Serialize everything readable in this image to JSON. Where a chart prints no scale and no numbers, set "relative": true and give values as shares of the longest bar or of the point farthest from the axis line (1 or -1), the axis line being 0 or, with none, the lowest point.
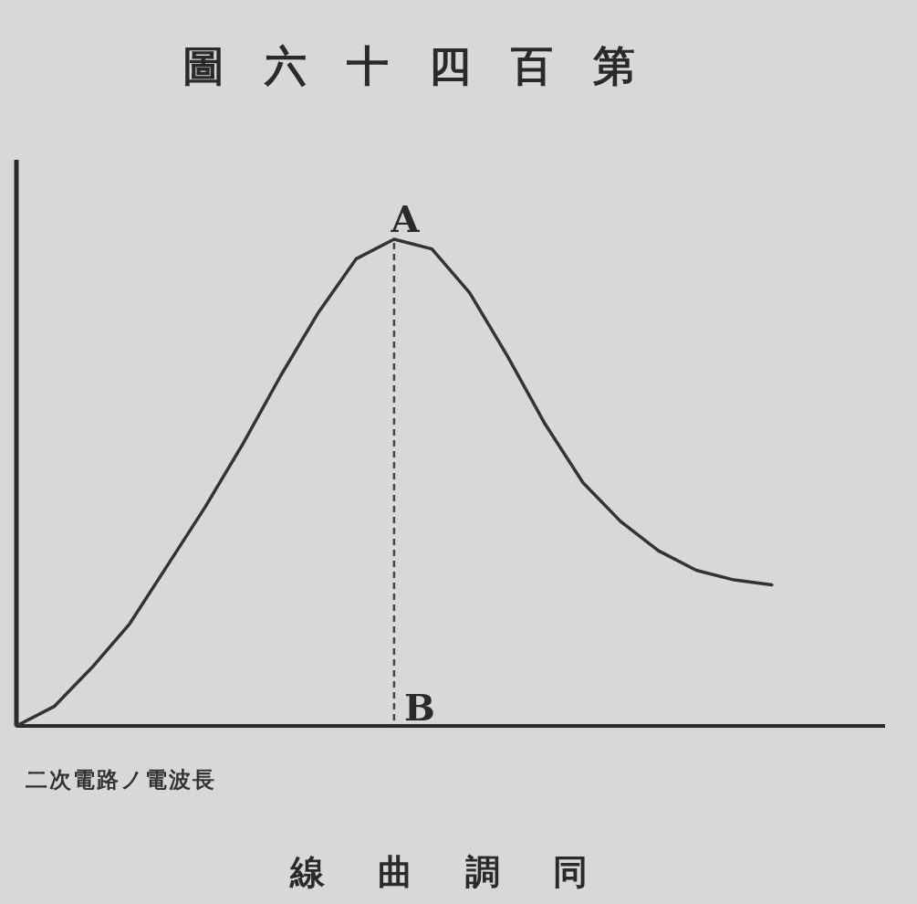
{
  "chart_data": {
    "type": "line",
    "relative": true,
    "title": "圖六十四百第",
    "subtitle": "線曲調同",
    "xlabel": "二次電路ノ電波長",
    "categories": [
      null,
      null,
      null,
      null,
      null,
      null,
      null,
      null,
      null,
      null,
      null,
      null,
      null,
      null,
      null,
      null,
      null,
      null,
      null,
      null,
      null,
      null,
      null,
      null
    ],
    "series": [
      {
        "color": "#333333",
        "values": [
          0,
          0.04,
          0.12,
          0.21,
          0.33,
          0.45,
          0.58,
          0.72,
          0.85,
          0.96,
          1,
          0.98,
          0.89,
          0.76,
          0.62,
          0.5,
          0.42,
          0.36,
          0.32,
          0.3,
          0.29,
          null,
          null,
          null
        ]
      }
    ],
    "annotations": [
      {
        "text": "A",
        "y": 1
      },
      "B"
    ],
    "marker": "none",
    "line_style": "solid"
  }
}
